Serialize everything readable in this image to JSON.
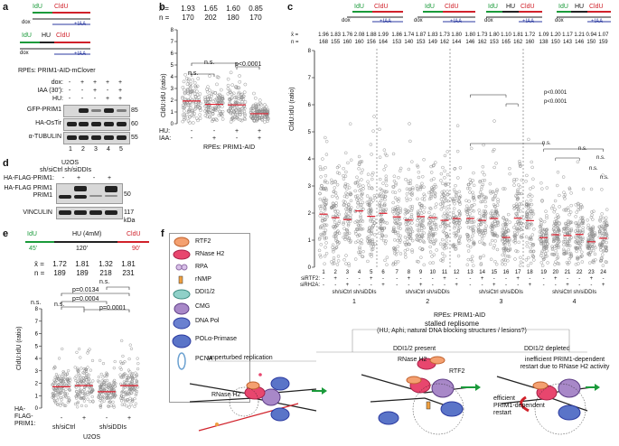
{
  "panel_a": {
    "letter": "a",
    "scheme1": {
      "idu": "IdU",
      "cldu": "CldU",
      "dox": "dox",
      "iaa": "+IAA"
    },
    "scheme2": {
      "idu": "IdU",
      "hu": "HU",
      "cldu": "CldU",
      "dox": "dox",
      "iaa": "+IAA"
    },
    "cell_line": "RPEs: PRIM1-AID-mClover",
    "row_labels": [
      "dox:",
      "IAA (30'):",
      "HU:"
    ],
    "treatments": [
      [
        "-",
        "+",
        "+",
        "+",
        "+"
      ],
      [
        "-",
        "-",
        "+",
        "-",
        "+"
      ],
      [
        "-",
        "-",
        "-",
        "+",
        "+"
      ]
    ],
    "blot_labels": [
      "GFP-PRIM1",
      "HA-OsTir",
      "α-TUBULIN"
    ],
    "mw": [
      "85",
      "60",
      "55"
    ],
    "lanes": [
      "1",
      "2",
      "3",
      "4",
      "5"
    ]
  },
  "panel_b": {
    "letter": "b",
    "xbar_label": "x̄ =",
    "xbar": [
      "1.93",
      "1.65",
      "1.60",
      "0.85"
    ],
    "n_label": "n =",
    "n": [
      "170",
      "202",
      "180",
      "170"
    ],
    "ylabel": "CldU:IdU (ratio)",
    "yticks": [
      "0",
      "1",
      "2",
      "3",
      "4",
      "5",
      "6",
      "7",
      "8"
    ],
    "sig": [
      "n.s.",
      "n.s.",
      "p<0.0001"
    ],
    "hu_label": "HU:",
    "iaa_label": "IAA:",
    "hu": [
      "-",
      "-",
      "+",
      "+"
    ],
    "iaa": [
      "-",
      "+",
      "-",
      "+"
    ],
    "cell_line": "RPEs: PRIM1-AID"
  },
  "panel_c": {
    "letter": "c",
    "scheme1": {
      "idu": "IdU",
      "cldu": "CldU",
      "dox": "dox",
      "iaa": "+IAA"
    },
    "scheme2": {
      "idu": "IdU",
      "cldu": "CldU",
      "dox": "dox",
      "iaa": "+IAA"
    },
    "scheme3": {
      "idu": "IdU",
      "hu": "HU",
      "cldu": "CldU",
      "dox": "dox",
      "iaa": "+IAA"
    },
    "scheme4": {
      "idu": "IdU",
      "hu": "HU",
      "cldu": "CldU",
      "dox": "dox",
      "iaa": "+IAA"
    },
    "xbar_label": "x̄ =",
    "n_label": "n =",
    "xbar": [
      "1.96",
      "1.83",
      "1.76",
      "2.08",
      "1.88",
      "1.99",
      "1.86",
      "1.74",
      "1.87",
      "1.83",
      "1.73",
      "1.80",
      "1.80",
      "1.73",
      "1.80",
      "1.10",
      "1.81",
      "1.72",
      "1.09",
      "1.20",
      "1.17",
      "1.21",
      "0.94",
      "1.07"
    ],
    "n": [
      "168",
      "155",
      "160",
      "160",
      "156",
      "164",
      "153",
      "140",
      "153",
      "149",
      "162",
      "144",
      "146",
      "162",
      "153",
      "165",
      "162",
      "160",
      "138",
      "150",
      "143",
      "146",
      "150",
      "159"
    ],
    "ylabel": "CldU:IdU (ratio)",
    "yticks": [
      "0",
      "1",
      "2",
      "3",
      "4",
      "5",
      "6",
      "7",
      "8"
    ],
    "sig": [
      "p<0.0001",
      "p<0.0001",
      "n.s.",
      "n.s.",
      "n.s.",
      "n.s.",
      "n.s."
    ],
    "lanes": [
      "1",
      "2",
      "3",
      "4",
      "5",
      "6",
      "7",
      "8",
      "9",
      "10",
      "11",
      "12",
      "13",
      "14",
      "15",
      "16",
      "17",
      "18",
      "19",
      "20",
      "21",
      "22",
      "23",
      "24"
    ],
    "sirtf2_label": "siRTF2:",
    "sirh2a_label": "siRH2A:",
    "sirtf2": [
      "-",
      "+",
      "-",
      "-",
      "+",
      "-"
    ],
    "sirh2a": [
      "-",
      "-",
      "+",
      "-",
      "-",
      "+"
    ],
    "group_label": "sh/siCtrl sh/siDDIs",
    "groups": [
      "1",
      "2",
      "3",
      "4"
    ],
    "cell_line": "RPEs: PRIM1-AID"
  },
  "panel_d": {
    "letter": "d",
    "cell_line": "U2OS",
    "conditions": "sh/siCtrl sh/siDDIs",
    "row_label": "HA-FLAG-PRIM1:",
    "treatment": [
      "-",
      "+",
      "-",
      "+"
    ],
    "blot_labels": [
      "HA-FLAG PRIM1",
      "PRIM1",
      "VINCULIN"
    ],
    "mw": [
      "50",
      "117"
    ],
    "mw_unit": "kDa"
  },
  "panel_e": {
    "letter": "e",
    "scheme": {
      "idu": "IdU",
      "idu_time": "45'",
      "hu": "HU (4mM)",
      "hu_time": "120'",
      "cldu": "CldU",
      "cldu_time": "90'"
    },
    "xbar_label": "x̄ =",
    "xbar": [
      "1.72",
      "1.81",
      "1.32",
      "1.81"
    ],
    "n_label": "n =",
    "n": [
      "189",
      "189",
      "218",
      "231"
    ],
    "sig": [
      "n.s.",
      "p=0.0134",
      "n.s.",
      "p=0.0004",
      "n.s.",
      "p=0.0001"
    ],
    "ylabel": "CldU:IdU (ratio)",
    "yticks": [
      "0",
      "1",
      "2",
      "3",
      "4",
      "5",
      "6",
      "7",
      "8"
    ],
    "row_label": [
      "HA-",
      "FLAG-",
      "PRIM1:"
    ],
    "treatment": [
      "-",
      "+",
      "-",
      "+"
    ],
    "groups": [
      "sh/siCtrl",
      "sh/siDDIs"
    ],
    "cell_line": "U2OS"
  },
  "panel_f": {
    "letter": "f",
    "legend": [
      "RTF2",
      "RNase H2",
      "RPA",
      "rNMP",
      "DDI1/2",
      "CMG",
      "DNA Pol",
      "POLα-Primase",
      "PCNA"
    ],
    "stalled_title": "stalled replisome",
    "stalled_sub": "(HU, Aphi, natural DNA blocking structures / lesions?)",
    "unperturbed": "unperturbed replication",
    "ddi_present": "DDI1/2 present",
    "ddi_depleted": "DDI1/2 depleted",
    "rnaseh2_label": "RNase H2",
    "rnaseh2_label2": "RNase H2",
    "rtf2_label": "RTF2",
    "efficient": [
      "efficient",
      "PRIM1-dependent",
      "restart"
    ],
    "inefficient": [
      "inefficient PRIM1-dependent",
      "restart due to RNase H2 activity"
    ]
  }
}
